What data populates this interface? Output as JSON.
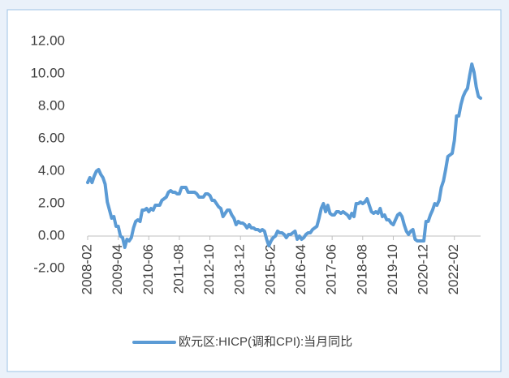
{
  "chart_data": {
    "type": "line",
    "categories": [
      "2008-02",
      null,
      null,
      null,
      null,
      null,
      null,
      null,
      null,
      null,
      null,
      null,
      null,
      null,
      "2009-04",
      null,
      null,
      null,
      null,
      null,
      null,
      null,
      null,
      null,
      null,
      null,
      null,
      null,
      "2010-06",
      null,
      null,
      null,
      null,
      null,
      null,
      null,
      null,
      null,
      null,
      null,
      null,
      null,
      "2011-08",
      null,
      null,
      null,
      null,
      null,
      null,
      null,
      null,
      null,
      null,
      null,
      null,
      null,
      "2012-10",
      null,
      null,
      null,
      null,
      null,
      null,
      null,
      null,
      null,
      null,
      null,
      null,
      null,
      "2013-12",
      null,
      null,
      null,
      null,
      null,
      null,
      null,
      null,
      null,
      null,
      null,
      null,
      null,
      "2015-02",
      null,
      null,
      null,
      null,
      null,
      null,
      null,
      null,
      null,
      null,
      null,
      null,
      null,
      "2016-04",
      null,
      null,
      null,
      null,
      null,
      null,
      null,
      null,
      null,
      null,
      null,
      null,
      null,
      "2017-06",
      null,
      null,
      null,
      null,
      null,
      null,
      null,
      null,
      null,
      null,
      null,
      null,
      null,
      "2018-08",
      null,
      null,
      null,
      null,
      null,
      null,
      null,
      null,
      null,
      null,
      null,
      null,
      null,
      "2019-10",
      null,
      null,
      null,
      null,
      null,
      null,
      null,
      null,
      null,
      null,
      null,
      null,
      null,
      "2020-12",
      null,
      null,
      null,
      null,
      null,
      null,
      null,
      null,
      null,
      null,
      null,
      null,
      null,
      "2022-02",
      null,
      null,
      null,
      null,
      null,
      null,
      null,
      null,
      null,
      null,
      null,
      null
    ],
    "series": [
      {
        "name": "欧元区:HICP(调和CPI):当月同比",
        "color": "#5b9bd5",
        "values": [
          3.3,
          3.6,
          3.3,
          3.7,
          4.0,
          4.1,
          3.8,
          3.6,
          3.2,
          2.1,
          1.6,
          1.1,
          1.2,
          0.6,
          0.6,
          0.0,
          -0.1,
          -0.7,
          -0.2,
          -0.3,
          -0.1,
          0.5,
          0.9,
          1.0,
          0.9,
          1.6,
          1.6,
          1.7,
          1.5,
          1.7,
          1.6,
          1.9,
          1.9,
          1.9,
          2.2,
          2.3,
          2.4,
          2.7,
          2.8,
          2.7,
          2.7,
          2.6,
          2.6,
          3.0,
          3.0,
          3.0,
          2.7,
          2.7,
          2.7,
          2.7,
          2.6,
          2.4,
          2.4,
          2.4,
          2.6,
          2.6,
          2.5,
          2.2,
          2.2,
          2.0,
          1.8,
          1.7,
          1.2,
          1.4,
          1.6,
          1.6,
          1.3,
          1.1,
          0.7,
          0.9,
          0.8,
          0.8,
          0.7,
          0.5,
          0.7,
          0.5,
          0.5,
          0.4,
          0.4,
          0.3,
          0.4,
          0.3,
          -0.2,
          -0.6,
          -0.3,
          -0.1,
          0.0,
          0.3,
          0.2,
          0.2,
          0.1,
          -0.1,
          0.1,
          0.1,
          0.2,
          0.3,
          -0.2,
          0.0,
          -0.2,
          -0.1,
          0.1,
          0.2,
          0.2,
          0.4,
          0.5,
          0.6,
          1.1,
          1.7,
          2.0,
          1.5,
          1.9,
          1.4,
          1.3,
          1.3,
          1.5,
          1.5,
          1.4,
          1.5,
          1.4,
          1.3,
          1.1,
          1.4,
          1.2,
          2.0,
          2.0,
          2.1,
          2.0,
          2.1,
          2.3,
          1.9,
          1.5,
          1.4,
          1.5,
          1.4,
          1.7,
          1.2,
          1.3,
          1.0,
          1.0,
          0.8,
          0.7,
          1.0,
          1.3,
          1.4,
          1.2,
          0.7,
          0.3,
          0.1,
          0.3,
          0.4,
          -0.2,
          -0.3,
          -0.3,
          -0.3,
          -0.3,
          0.9,
          0.9,
          1.3,
          1.6,
          2.0,
          1.9,
          2.2,
          3.0,
          3.4,
          4.1,
          4.9,
          5.0,
          5.1,
          5.9,
          7.4,
          7.4,
          8.1,
          8.6,
          8.9,
          9.1,
          9.9,
          10.6,
          10.1,
          9.2,
          8.6,
          8.5
        ]
      }
    ],
    "ylim": [
      -2,
      12
    ],
    "yticks": [
      {
        "value": -2,
        "label": "-2.00"
      },
      {
        "value": 0,
        "label": "0.00"
      },
      {
        "value": 2,
        "label": "2.00"
      },
      {
        "value": 4,
        "label": "4.00"
      },
      {
        "value": 6,
        "label": "6.00"
      },
      {
        "value": 8,
        "label": "8.00"
      },
      {
        "value": 10,
        "label": "10.00"
      },
      {
        "value": 12,
        "label": "12.00"
      }
    ],
    "grid": false
  }
}
